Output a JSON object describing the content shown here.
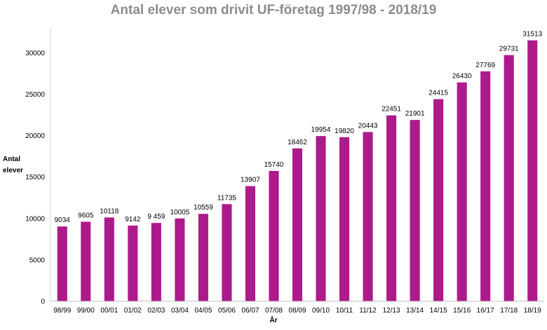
{
  "chart_data": {
    "type": "bar",
    "title": "Antal elever som drivit UF-företag 1997/98 - 2018/19",
    "xlabel": "År",
    "ylabel": "Antal elever",
    "ylim": [
      0,
      33000
    ],
    "yticks": [
      0,
      5000,
      10000,
      15000,
      20000,
      25000,
      30000
    ],
    "grid": false,
    "legend": "none",
    "bar_color": "#ad1a8b",
    "categories": [
      "98/99",
      "99/00",
      "00/01",
      "01/02",
      "02/03",
      "03/04",
      "04/05",
      "05/06",
      "06/07",
      "07/08",
      "08/09",
      "09/10",
      "10/11",
      "11/12",
      "12/13",
      "13/14",
      "14/15",
      "15/16",
      "16/17",
      "17/18",
      "18/19"
    ],
    "values": [
      9034,
      9605,
      10118,
      9142,
      9459,
      10005,
      10559,
      11735,
      13907,
      15740,
      18462,
      19954,
      19820,
      20443,
      22451,
      21901,
      24415,
      26430,
      27769,
      29731,
      31513
    ],
    "data_labels": [
      "9034",
      "9605",
      "10118",
      "9142",
      "9 459",
      "10005",
      "10559",
      "11735",
      "13907",
      "15740",
      "18462",
      "19954",
      "19820",
      "20443",
      "22451",
      "21901",
      "24415",
      "26430",
      "27769",
      "29731",
      "31513"
    ]
  }
}
